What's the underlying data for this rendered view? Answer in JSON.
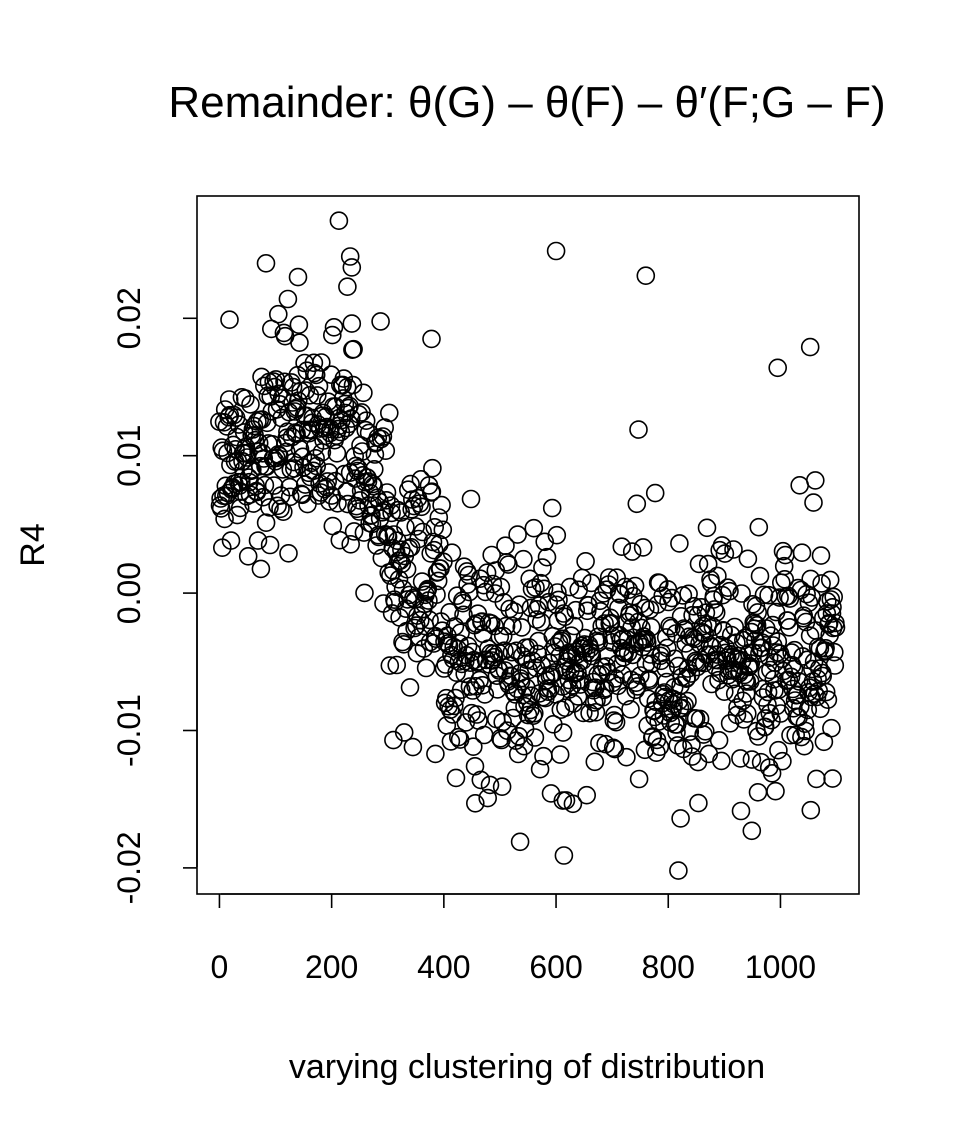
{
  "chart_data": {
    "type": "scatter",
    "title": "Remainder: θ(G) – θ(F) – θ′(F;G – F)",
    "xlabel": "varying clustering of distribution",
    "ylabel": "R4",
    "xlim": [
      -40,
      1140
    ],
    "ylim": [
      -0.0219,
      0.0289
    ],
    "x_ticks": [
      0,
      200,
      400,
      600,
      800,
      1000
    ],
    "x_tick_labels": [
      "0",
      "200",
      "400",
      "600",
      "800",
      "1000"
    ],
    "y_ticks": [
      -0.02,
      -0.01,
      0.0,
      0.01,
      0.02
    ],
    "y_tick_labels": [
      "-0.02",
      "-0.01",
      "0.00",
      "0.01",
      "0.02"
    ],
    "grid": false,
    "legend": "none",
    "marker": "open-circle",
    "point_color": "#000000",
    "n_points": 1100,
    "segments": [
      {
        "x_range": [
          0,
          90
        ],
        "mean": 0.0095,
        "sd": 0.0032
      },
      {
        "x_range": [
          90,
          240
        ],
        "mean": 0.0118,
        "sd": 0.0038
      },
      {
        "x_range": [
          240,
          300
        ],
        "mean": 0.0085,
        "sd": 0.0035
      },
      {
        "x_range": [
          300,
          400
        ],
        "mean": 0.0015,
        "sd": 0.0045
      },
      {
        "x_range": [
          400,
          1100
        ],
        "mean": -0.0045,
        "sd": 0.0042
      }
    ],
    "outliers": [
      {
        "x": 213,
        "y": 0.0271
      },
      {
        "x": 233,
        "y": 0.0245
      },
      {
        "x": 236,
        "y": 0.0237
      },
      {
        "x": 228,
        "y": 0.0223
      },
      {
        "x": 140,
        "y": 0.023
      },
      {
        "x": 83,
        "y": 0.024
      },
      {
        "x": 600,
        "y": 0.0249
      },
      {
        "x": 760,
        "y": 0.0231
      },
      {
        "x": 1053,
        "y": 0.0179
      },
      {
        "x": 995,
        "y": 0.0164
      },
      {
        "x": 378,
        "y": 0.0185
      },
      {
        "x": 747,
        "y": 0.0119
      },
      {
        "x": 818,
        "y": -0.0202
      },
      {
        "x": 614,
        "y": -0.0191
      },
      {
        "x": 536,
        "y": -0.0181
      },
      {
        "x": 949,
        "y": -0.0173
      },
      {
        "x": 1054,
        "y": -0.0158
      },
      {
        "x": 822,
        "y": -0.0164
      },
      {
        "x": 612,
        "y": -0.0151
      },
      {
        "x": 456,
        "y": -0.0153
      },
      {
        "x": 1093,
        "y": -0.0135
      },
      {
        "x": 980,
        "y": -0.0127
      },
      {
        "x": 960,
        "y": -0.0145
      },
      {
        "x": 853,
        "y": -0.0123
      },
      {
        "x": 310,
        "y": -0.0107
      },
      {
        "x": 385,
        "y": -0.0117
      },
      {
        "x": 18,
        "y": 0.0199
      },
      {
        "x": 105,
        "y": 0.0203
      }
    ]
  }
}
